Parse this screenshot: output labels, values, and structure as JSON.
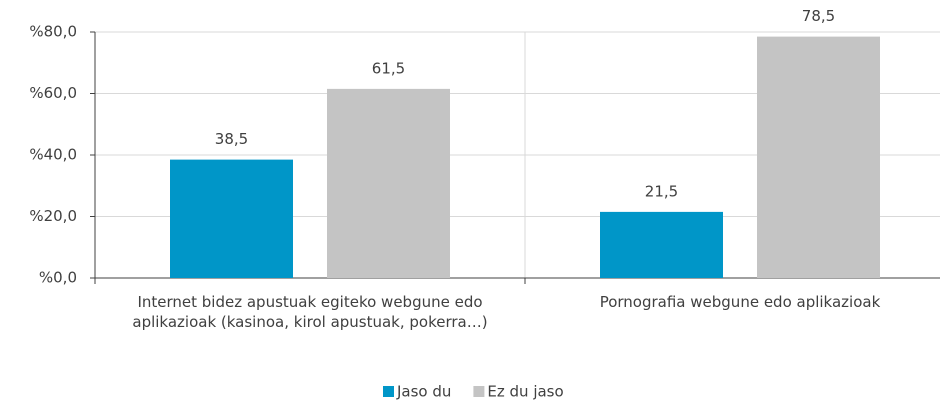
{
  "chart_data": {
    "type": "bar",
    "categories": [
      "Internet bidez apustuak egiteko webgune edo aplikazioak (kasinoa, kirol apustuak, pokerra…)",
      "Pornografia webgune edo aplikazioak"
    ],
    "series": [
      {
        "name": "Jaso du",
        "color": "#0096c8",
        "values": [
          38.5,
          21.5
        ],
        "value_labels": [
          "38,5",
          "21,5"
        ]
      },
      {
        "name": "Ez du jaso",
        "color": "#c4c4c4",
        "values": [
          61.5,
          78.5
        ],
        "value_labels": [
          "61,5",
          "78,5"
        ]
      }
    ],
    "ylim": [
      0,
      80
    ],
    "yticks": [
      {
        "value": 0,
        "label": "%0,0"
      },
      {
        "value": 20,
        "label": "%20,0"
      },
      {
        "value": 40,
        "label": "%40,0"
      },
      {
        "value": 60,
        "label": "%60,0"
      },
      {
        "value": 80,
        "label": "%80,0"
      }
    ],
    "grid": true,
    "legend": "bottom"
  }
}
